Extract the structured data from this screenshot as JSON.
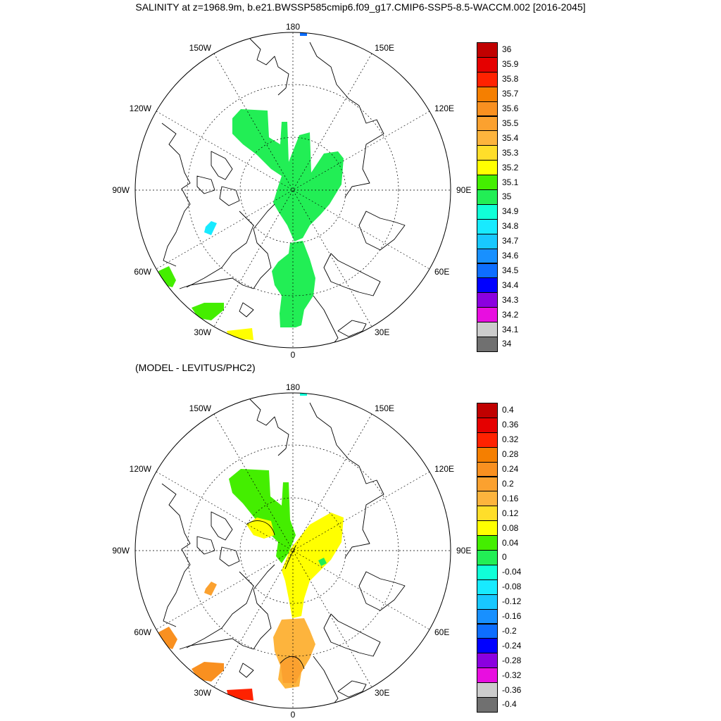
{
  "title": "SALINITY at z=1968.9m, b.e21.BWSSP585cmip6.f09_g17.CMIP6-SSP5-8.5-WACCM.002 [2016-2045]",
  "panels": [
    {
      "heading": "",
      "lon_labels": {
        "top": "180",
        "bottom": "0",
        "left": "90W",
        "right": "90E",
        "ul150": "150W",
        "ul120": "120W",
        "ur150": "150E",
        "ur120": "120E",
        "ll60": "60W",
        "ll30": "30W",
        "lr60": "60E",
        "lr30": "30E"
      },
      "colorbar": {
        "labels": [
          "36",
          "35.9",
          "35.8",
          "35.7",
          "35.6",
          "35.5",
          "35.4",
          "35.3",
          "35.2",
          "35.1",
          "35",
          "34.9",
          "34.8",
          "34.7",
          "34.6",
          "34.5",
          "34.4",
          "34.3",
          "34.2",
          "34.1",
          "34"
        ],
        "colors": [
          "#c00000",
          "#e50000",
          "#ff2200",
          "#f57f00",
          "#f99020",
          "#fba12f",
          "#fdb43d",
          "#ffde2a",
          "#ffff00",
          "#44ee00",
          "#22ee55",
          "#10ffd8",
          "#18eaff",
          "#18c8ff",
          "#1890ff",
          "#0d6eff",
          "#0000ff",
          "#8b00e0",
          "#e80ee0",
          "#cccccc",
          "#707070"
        ]
      }
    },
    {
      "heading": "(MODEL - LEVITUS/PHC2)",
      "lon_labels": {
        "top": "180",
        "bottom": "0",
        "left": "90W",
        "right": "90E",
        "ul150": "150W",
        "ul120": "120W",
        "ur150": "150E",
        "ur120": "120E",
        "ll60": "60W",
        "ll30": "30W",
        "lr60": "60E",
        "lr30": "30E"
      },
      "colorbar": {
        "labels": [
          "0.4",
          "0.36",
          "0.32",
          "0.28",
          "0.24",
          "0.2",
          "0.16",
          "0.12",
          "0.08",
          "0.04",
          "0",
          "-0.04",
          "-0.08",
          "-0.12",
          "-0.16",
          "-0.2",
          "-0.24",
          "-0.28",
          "-0.32",
          "-0.36",
          "-0.4"
        ],
        "colors": [
          "#c00000",
          "#e50000",
          "#ff2200",
          "#f57f00",
          "#f99020",
          "#fba12f",
          "#fdb43d",
          "#ffde2a",
          "#ffff00",
          "#44ee00",
          "#22ee55",
          "#10ffd8",
          "#18eaff",
          "#18c8ff",
          "#1890ff",
          "#0d6eff",
          "#0000ff",
          "#8b00e0",
          "#e80ee0",
          "#cccccc",
          "#707070"
        ]
      }
    }
  ]
}
